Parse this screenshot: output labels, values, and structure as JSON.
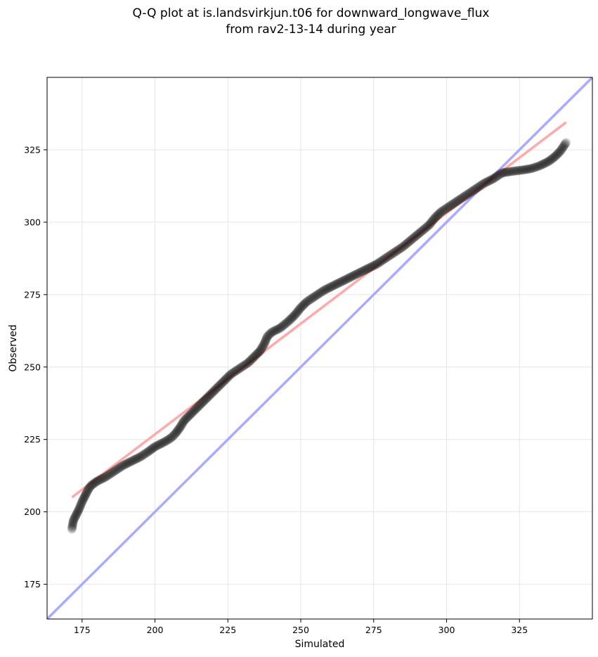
{
  "chart_data": {
    "type": "scatter",
    "title": "Q-Q plot at is.landsvirkjun.t06 for downward_longwave_flux",
    "subtitle": "from rav2-13-14 during year",
    "xlabel": "Simulated",
    "ylabel": "Observed",
    "xlim": [
      163,
      350
    ],
    "ylim": [
      163,
      350
    ],
    "xticks": [
      175,
      200,
      225,
      250,
      275,
      300,
      325
    ],
    "yticks": [
      175,
      200,
      225,
      250,
      275,
      300,
      325
    ],
    "grid": true,
    "reference_line": {
      "color": "#aaaaff",
      "points": [
        [
          163,
          163
        ],
        [
          350,
          350
        ]
      ]
    },
    "fit_line": {
      "color": "#ffaaaa",
      "points": [
        [
          171.5,
          205
        ],
        [
          341,
          334.5
        ]
      ]
    },
    "point_color": "#000000",
    "quantile_curve": [
      [
        171.5,
        194
      ],
      [
        172,
        197
      ],
      [
        173,
        199
      ],
      [
        174,
        201
      ],
      [
        175,
        203.5
      ],
      [
        176,
        205.5
      ],
      [
        177,
        207.5
      ],
      [
        178,
        209
      ],
      [
        180,
        210.5
      ],
      [
        183,
        212
      ],
      [
        186,
        214
      ],
      [
        189,
        216
      ],
      [
        192,
        217.5
      ],
      [
        195,
        219
      ],
      [
        198,
        221
      ],
      [
        200,
        222.5
      ],
      [
        203,
        224
      ],
      [
        205.5,
        225.5
      ],
      [
        207,
        227
      ],
      [
        208.5,
        229
      ],
      [
        210,
        231.5
      ],
      [
        212,
        233.5
      ],
      [
        214,
        235.5
      ],
      [
        216,
        237.5
      ],
      [
        218,
        239.5
      ],
      [
        220,
        241.5
      ],
      [
        222,
        243.5
      ],
      [
        224,
        245.5
      ],
      [
        226,
        247.5
      ],
      [
        229,
        249.5
      ],
      [
        232,
        251.5
      ],
      [
        234,
        253.5
      ],
      [
        236,
        255.5
      ],
      [
        237.5,
        258
      ],
      [
        238.5,
        260.5
      ],
      [
        240,
        262
      ],
      [
        243,
        263.5
      ],
      [
        246,
        266
      ],
      [
        248,
        268
      ],
      [
        250,
        270.5
      ],
      [
        252,
        272.5
      ],
      [
        255,
        274.5
      ],
      [
        258,
        276.5
      ],
      [
        261,
        278
      ],
      [
        264,
        279.5
      ],
      [
        267,
        281
      ],
      [
        270,
        282.5
      ],
      [
        273,
        284
      ],
      [
        276,
        285.5
      ],
      [
        279,
        287.5
      ],
      [
        282,
        289.5
      ],
      [
        285,
        291.5
      ],
      [
        288,
        294
      ],
      [
        291,
        296.5
      ],
      [
        294,
        299
      ],
      [
        296,
        301.5
      ],
      [
        298,
        303.5
      ],
      [
        301,
        305.5
      ],
      [
        304,
        307.5
      ],
      [
        307,
        309.5
      ],
      [
        310,
        311.5
      ],
      [
        313,
        313.5
      ],
      [
        316,
        315
      ],
      [
        319,
        317
      ],
      [
        322,
        317.5
      ],
      [
        326,
        318
      ],
      [
        329,
        318.5
      ],
      [
        332,
        319.5
      ],
      [
        335,
        321
      ],
      [
        337,
        322.5
      ],
      [
        339,
        324.5
      ],
      [
        341,
        327.5
      ]
    ]
  }
}
